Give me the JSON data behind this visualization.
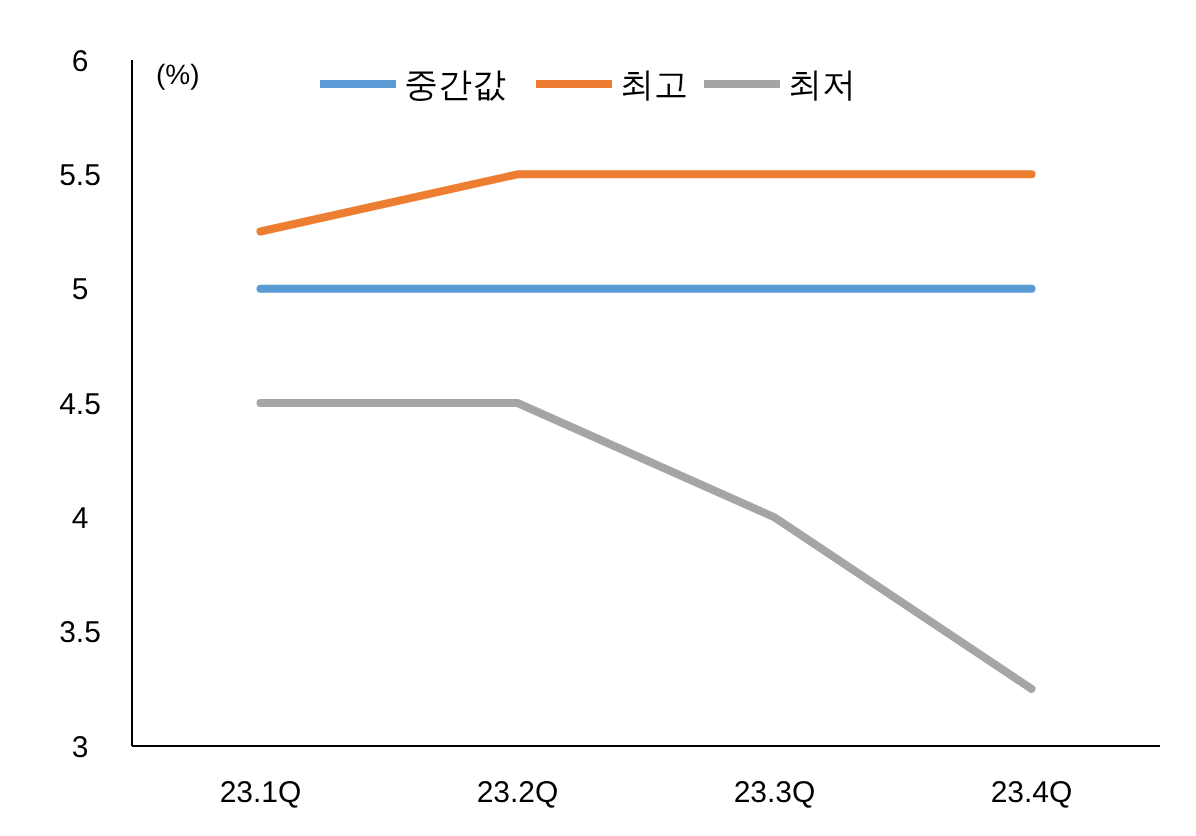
{
  "chart_data": {
    "type": "line",
    "categories": [
      "23.1Q",
      "23.2Q",
      "23.3Q",
      "23.4Q"
    ],
    "series": [
      {
        "name": "중간값",
        "color": "#5b9bd5",
        "values": [
          5,
          5,
          5,
          5
        ]
      },
      {
        "name": "최고",
        "color": "#ed7d31",
        "values": [
          5.25,
          5.5,
          5.5,
          5.5
        ]
      },
      {
        "name": "최저",
        "color": "#a5a5a5",
        "values": [
          4.5,
          4.5,
          4,
          3.25
        ]
      }
    ],
    "ylim": [
      3,
      6
    ],
    "yticks": [
      3,
      3.5,
      4,
      4.5,
      5,
      5.5,
      6
    ],
    "ylabel": "(%)",
    "grid": false,
    "legend": "top",
    "marker": "none",
    "line_style": "solid"
  }
}
